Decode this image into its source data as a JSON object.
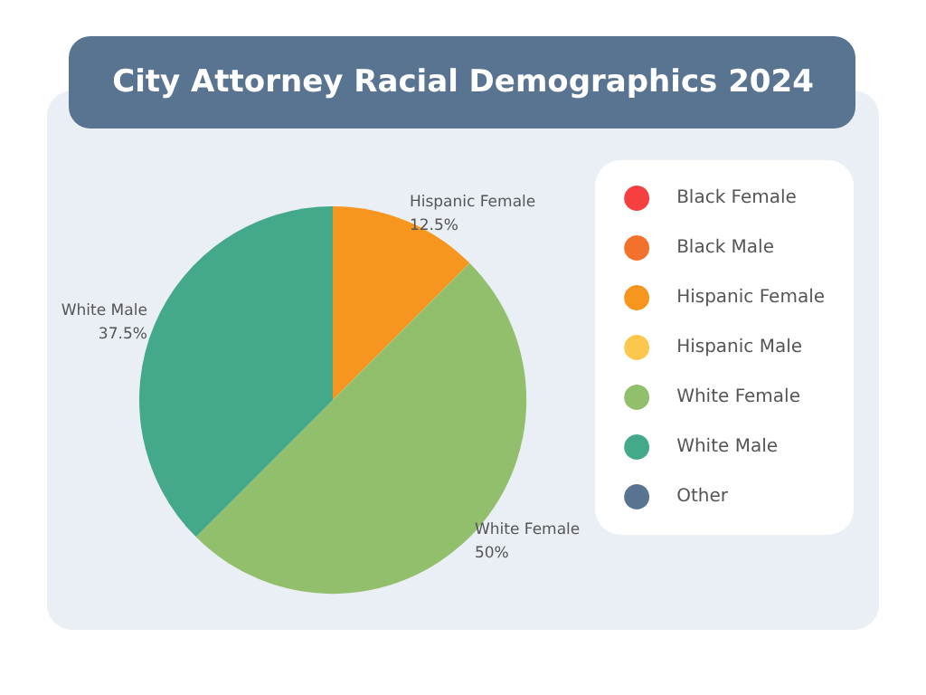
{
  "chart_data": {
    "type": "pie",
    "title": "City Attorney Racial Demographics 2024",
    "categories": [
      "Black Female",
      "Black Male",
      "Hispanic Female",
      "Hispanic Male",
      "White Female",
      "White Male",
      "Other"
    ],
    "values": [
      0,
      0,
      12.5,
      0,
      50,
      37.5,
      0
    ],
    "colors": [
      "#f5403f",
      "#f2722c",
      "#f7961f",
      "#fbc74c",
      "#91bf6b",
      "#43a98a",
      "#587490"
    ],
    "value_labels": [
      null,
      null,
      "12.5%",
      null,
      "50%",
      "37.5%",
      null
    ],
    "legend": "right"
  }
}
